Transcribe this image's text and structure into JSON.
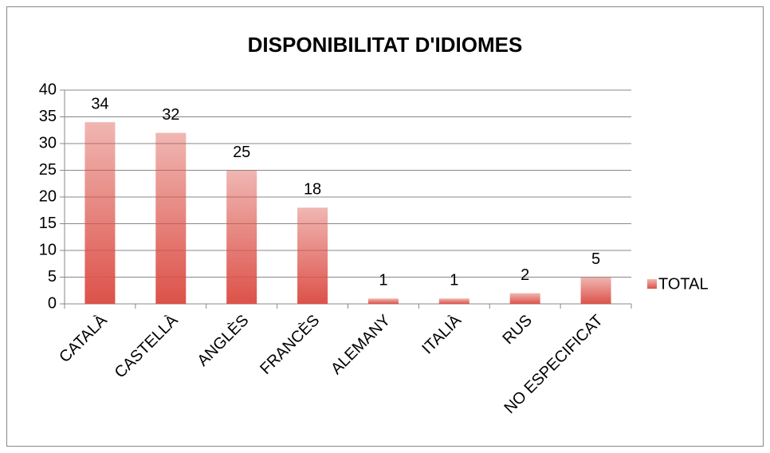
{
  "chart_data": {
    "type": "bar",
    "title": "DISPONIBILITAT D'IDIOMES",
    "categories": [
      "CATALÀ",
      "CASTELLÀ",
      "ANGLÈS",
      "FRANCÈS",
      "ALEMANY",
      "ITALIÀ",
      "RUS",
      "NO ESPECIFICAT"
    ],
    "series": [
      {
        "name": "TOTAL",
        "color": "#dc5249",
        "values": [
          34,
          32,
          25,
          18,
          1,
          1,
          2,
          5
        ]
      }
    ],
    "ylim": [
      0,
      40
    ],
    "yticks": [
      0,
      5,
      10,
      15,
      20,
      25,
      30,
      35,
      40
    ],
    "grid": true,
    "legend": "right"
  }
}
